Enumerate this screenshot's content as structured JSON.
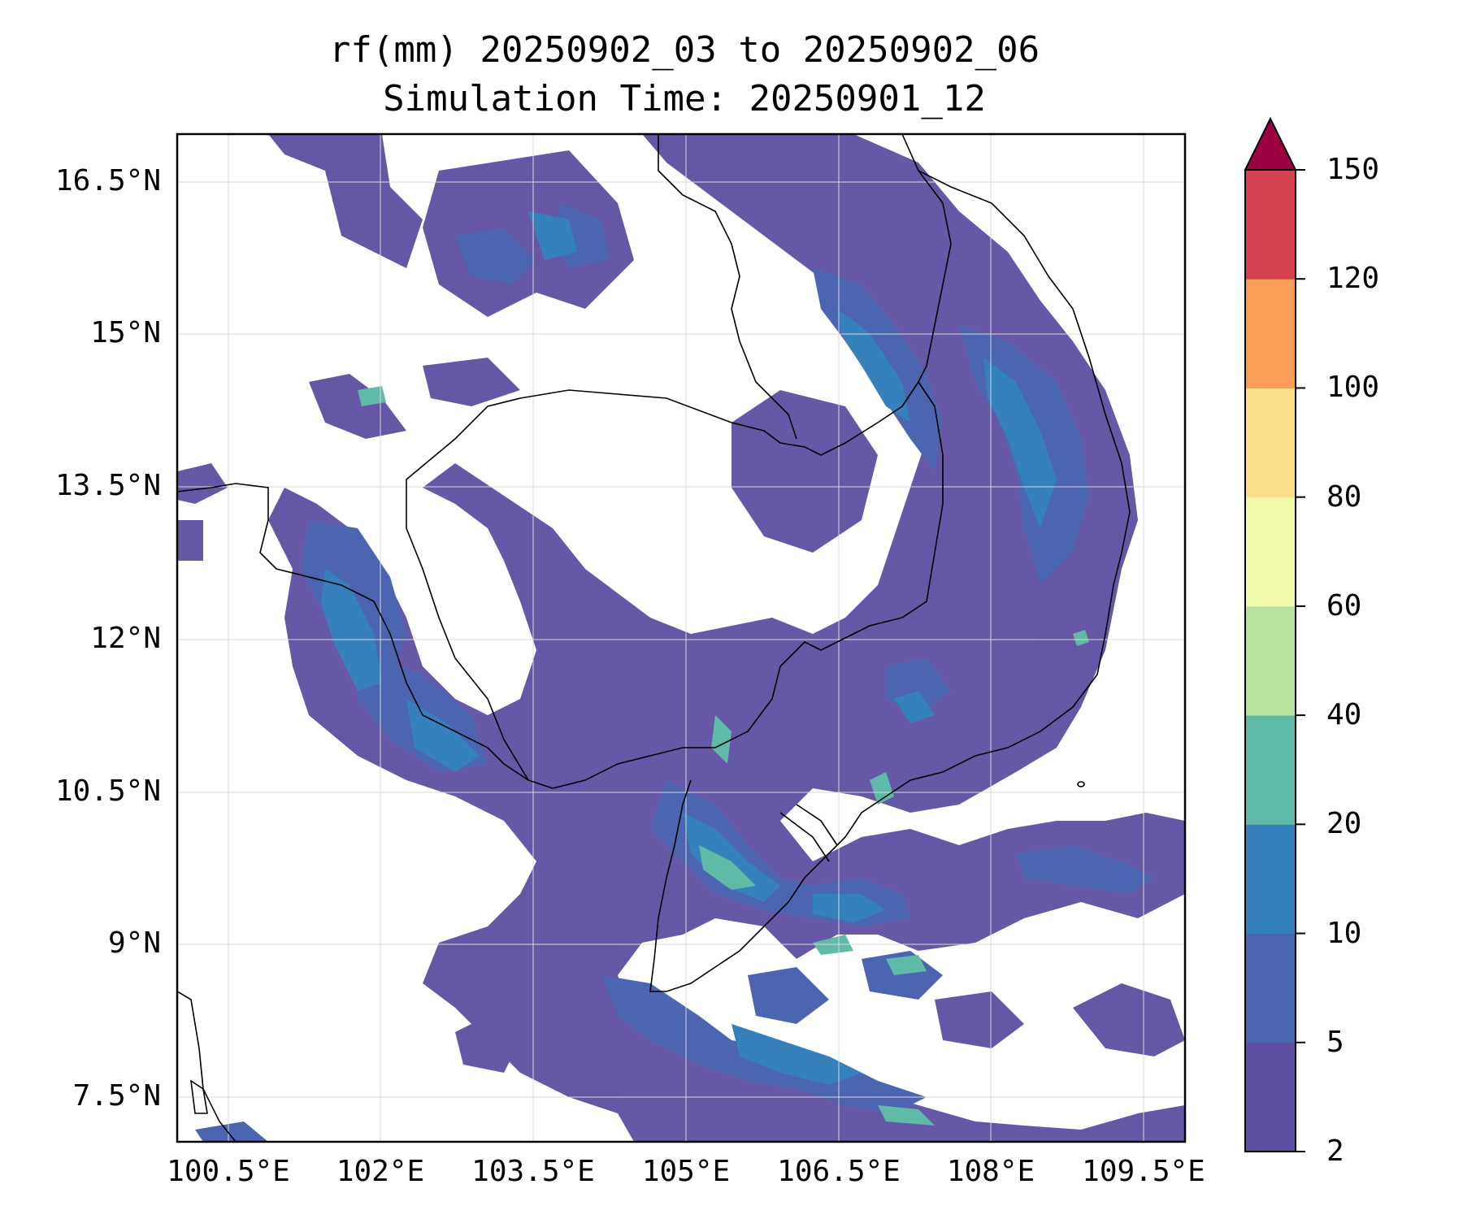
{
  "title": {
    "line1": "rf(mm) 20250902_03 to 20250902_06",
    "line2": "Simulation Time: 20250901_12"
  },
  "map": {
    "lon_range": [
      100.0,
      109.9
    ],
    "lat_range": [
      6.9,
      16.8
    ],
    "lon_ticks": [
      "100.5°E",
      "102°E",
      "103.5°E",
      "105°E",
      "106.5°E",
      "108°E",
      "109.5°E"
    ],
    "lat_ticks": [
      "16.5°N",
      "15°N",
      "13.5°N",
      "12°N",
      "10.5°N",
      "9°N",
      "7.5°N"
    ],
    "gridlines": true,
    "coastlines": true,
    "borders": true,
    "field": "rainfall accumulation (mm)"
  },
  "colorbar": {
    "levels": [
      "2",
      "5",
      "10",
      "20",
      "40",
      "60",
      "80",
      "100",
      "120",
      "150"
    ],
    "colors": [
      "#5e4fa2",
      "#4b65b0",
      "#3581bc",
      "#5fbaa8",
      "#b9e19d",
      "#f0f9aa",
      "#fbdd8a",
      "#f99d59",
      "#d5414f"
    ],
    "extend_color": "#9e0142",
    "extend": "max"
  }
}
